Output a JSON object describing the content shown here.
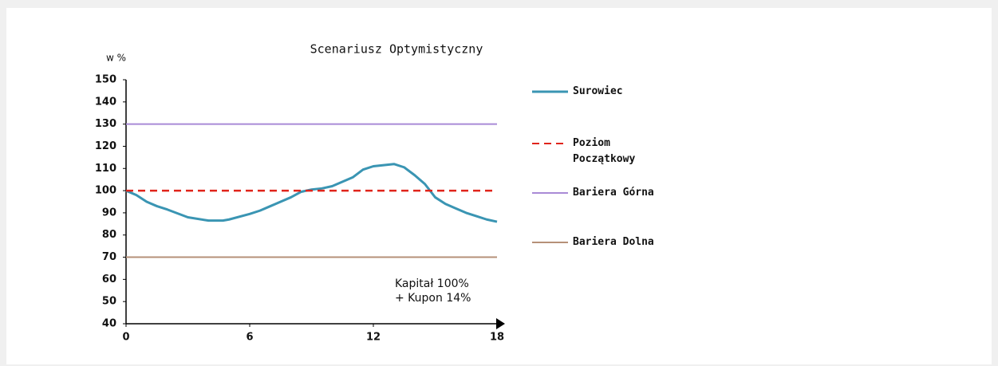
{
  "chart_data": {
    "type": "line",
    "title": "Scenariusz  Optymistyczny",
    "y_label": "w %",
    "x": [
      0,
      0.5,
      1,
      1.5,
      2,
      3,
      4,
      4.7,
      5,
      6,
      6.5,
      7,
      8,
      8.5,
      9,
      9.5,
      10,
      11,
      11.5,
      12,
      12.5,
      13,
      13.5,
      14,
      14.5,
      15,
      15.5,
      16,
      16.5,
      17,
      17.5,
      18
    ],
    "series": [
      {
        "name": "Surowiec",
        "color": "#3a95b3",
        "dash": false,
        "values": [
          100,
          98,
          95,
          93,
          91.5,
          88,
          86.5,
          86.5,
          87,
          89.5,
          91,
          93,
          97,
          99.5,
          100.5,
          101,
          102,
          106,
          109.5,
          111,
          111.5,
          112,
          110.5,
          107,
          103,
          97,
          94,
          92,
          90,
          88.5,
          87,
          86
        ]
      },
      {
        "name": "Poziom Początkowy",
        "color": "#e0241b",
        "dash": true,
        "x": [
          0,
          18
        ],
        "values": [
          100,
          100
        ]
      },
      {
        "name": "Bariera Górna",
        "color": "#a98ad6",
        "dash": false,
        "x": [
          0,
          18
        ],
        "values": [
          130,
          130
        ]
      },
      {
        "name": "Bariera Dolna",
        "color": "#b69078",
        "dash": false,
        "x": [
          0,
          18
        ],
        "values": [
          70,
          70
        ]
      }
    ],
    "annotation": [
      "Kapitał 100%",
      "+ Kupon 14%"
    ],
    "xlim": [
      0,
      18
    ],
    "xticks": [
      0,
      6,
      12,
      18
    ],
    "ylim": [
      40,
      150
    ],
    "yticks": [
      40,
      50,
      60,
      70,
      80,
      90,
      100,
      110,
      120,
      130,
      140,
      150
    ]
  }
}
